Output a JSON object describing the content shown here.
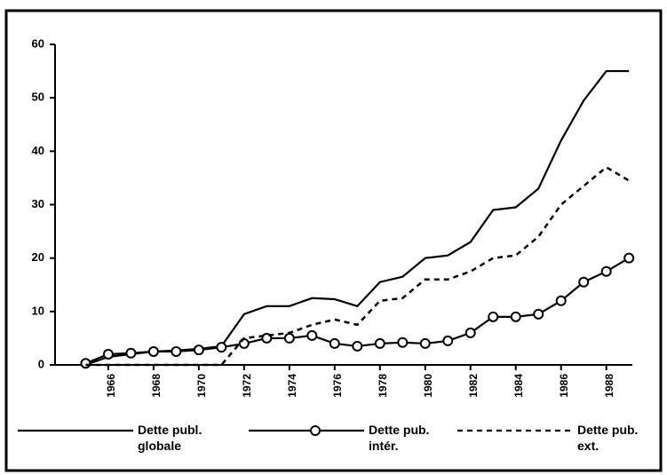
{
  "chart_data": {
    "type": "line",
    "x": [
      1965,
      1966,
      1967,
      1968,
      1969,
      1970,
      1971,
      1972,
      1973,
      1974,
      1975,
      1976,
      1977,
      1978,
      1979,
      1980,
      1981,
      1982,
      1983,
      1984,
      1985,
      1986,
      1987,
      1988,
      1989
    ],
    "series": [
      {
        "name": "Dette publ. globale",
        "color": "#000000",
        "style": "solid",
        "marker": "none",
        "values": [
          0,
          1.5,
          2,
          2.5,
          2.7,
          3,
          3.5,
          9.5,
          11,
          11,
          12.5,
          12.3,
          11,
          15.5,
          16.5,
          20,
          20.5,
          23,
          29,
          29.5,
          33,
          42,
          49.5,
          55,
          55
        ]
      },
      {
        "name": "Dette pub. intér.",
        "color": "#000000",
        "style": "solid",
        "marker": "circle",
        "values": [
          0.3,
          2,
          2.2,
          2.5,
          2.5,
          2.8,
          3.3,
          4,
          5,
          5,
          5.5,
          4,
          3.5,
          4,
          4.2,
          4,
          4.5,
          6,
          9,
          9,
          9.5,
          12,
          15.5,
          17.5,
          20
        ]
      },
      {
        "name": "Dette pub. ext.",
        "color": "#000000",
        "style": "dashed",
        "marker": "none",
        "values": [
          0,
          0,
          0,
          0,
          0,
          0,
          0,
          5,
          5.5,
          6,
          7.5,
          8.5,
          7.5,
          12,
          12.5,
          16,
          16,
          17.5,
          20,
          20.5,
          24,
          30,
          33.5,
          37,
          34.5
        ]
      }
    ],
    "xlim": [
      1963.65,
      1989.15
    ],
    "xticks": [
      1966,
      1968,
      1970,
      1972,
      1974,
      1976,
      1978,
      1980,
      1982,
      1984,
      1986,
      1988
    ],
    "ylim": [
      0,
      60
    ],
    "yticks": [
      0,
      10,
      20,
      30,
      40,
      50,
      60
    ],
    "grid": false,
    "legend": "bottom"
  }
}
